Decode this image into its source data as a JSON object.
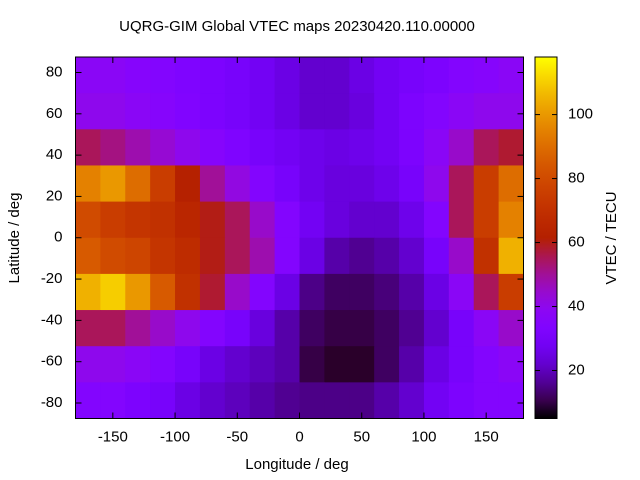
{
  "chart_data": {
    "type": "heatmap",
    "title": "UQRG-GIM Global VTEC maps 20230420.110.00000",
    "x_label": "Longitude / deg",
    "y_label": "Latitude / deg",
    "colorbar_label": "VTEC / TECU",
    "xlim": [
      -180,
      180
    ],
    "ylim": [
      -87.5,
      87.5
    ],
    "xticks": [
      -150,
      -100,
      -50,
      0,
      50,
      100,
      150
    ],
    "yticks": [
      -80,
      -60,
      -40,
      -20,
      0,
      20,
      40,
      60,
      80
    ],
    "clim": [
      5,
      118
    ],
    "cticks": [
      20,
      40,
      60,
      80,
      100
    ],
    "x_edges": [
      -180,
      -160,
      -140,
      -120,
      -100,
      -80,
      -60,
      -40,
      -20,
      0,
      20,
      40,
      60,
      80,
      100,
      120,
      140,
      160,
      180
    ],
    "y_edges": [
      87.5,
      70,
      52.5,
      35,
      17.5,
      0,
      -17.5,
      -35,
      -52.5,
      -70,
      -87.5
    ],
    "values": [
      [
        38,
        38,
        36,
        35,
        33,
        32,
        30,
        28,
        25,
        22,
        22,
        25,
        28,
        30,
        32,
        35,
        36,
        38
      ],
      [
        40,
        40,
        38,
        36,
        34,
        32,
        30,
        28,
        25,
        22,
        22,
        24,
        28,
        32,
        35,
        38,
        40,
        40
      ],
      [
        55,
        52,
        48,
        44,
        40,
        36,
        33,
        30,
        28,
        26,
        25,
        26,
        28,
        32,
        38,
        45,
        55,
        58
      ],
      [
        95,
        100,
        90,
        75,
        62,
        50,
        42,
        35,
        30,
        26,
        24,
        24,
        26,
        30,
        40,
        55,
        75,
        90
      ],
      [
        80,
        75,
        72,
        70,
        65,
        60,
        55,
        45,
        35,
        28,
        24,
        22,
        22,
        26,
        35,
        55,
        75,
        95
      ],
      [
        85,
        80,
        78,
        72,
        68,
        60,
        55,
        48,
        35,
        25,
        18,
        16,
        18,
        22,
        30,
        45,
        70,
        105
      ],
      [
        105,
        110,
        100,
        85,
        70,
        58,
        45,
        35,
        25,
        15,
        12,
        12,
        14,
        18,
        25,
        38,
        55,
        75
      ],
      [
        55,
        55,
        50,
        45,
        40,
        35,
        30,
        24,
        18,
        12,
        10,
        10,
        12,
        16,
        22,
        30,
        38,
        45
      ],
      [
        40,
        40,
        38,
        35,
        30,
        25,
        22,
        20,
        18,
        10,
        8,
        8,
        12,
        18,
        25,
        30,
        35,
        38
      ],
      [
        35,
        35,
        32,
        30,
        25,
        22,
        20,
        18,
        16,
        15,
        15,
        15,
        18,
        22,
        28,
        32,
        35,
        35
      ]
    ]
  }
}
